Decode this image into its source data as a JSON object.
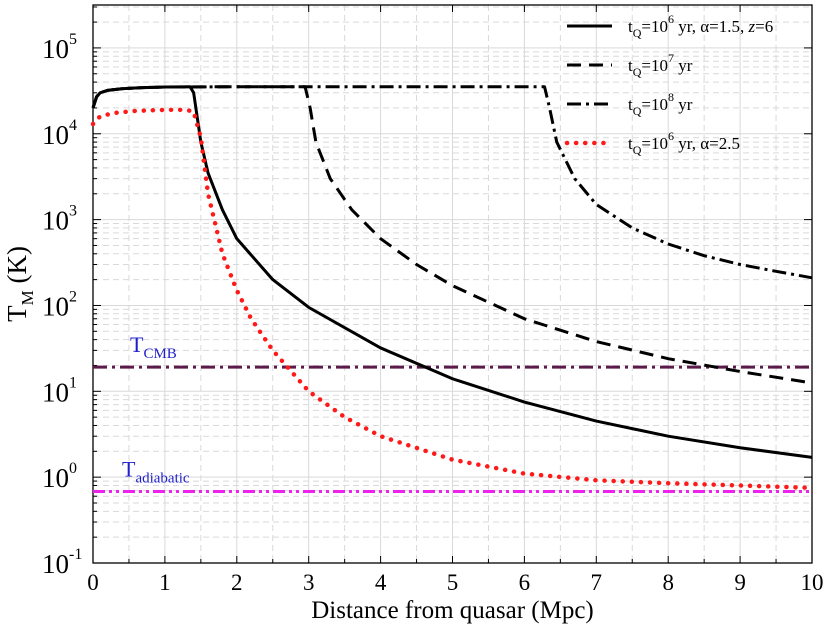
{
  "chart_data": {
    "type": "line",
    "title": "",
    "xlabel": "Distance from quasar (Mpc)",
    "ylabel": {
      "main": "T",
      "sub": "M",
      "units": "(K)"
    },
    "xlim": [
      0,
      10
    ],
    "ylim_log10": [
      -1,
      5.5
    ],
    "y_scale": "log",
    "x_ticks": [
      0,
      1,
      2,
      3,
      4,
      5,
      6,
      7,
      8,
      9,
      10
    ],
    "y_ticks": [
      {
        "base": "10",
        "exp": "-1",
        "value": 0.1
      },
      {
        "base": "10",
        "exp": "0",
        "value": 1
      },
      {
        "base": "10",
        "exp": "1",
        "value": 10
      },
      {
        "base": "10",
        "exp": "2",
        "value": 100
      },
      {
        "base": "10",
        "exp": "3",
        "value": 1000
      },
      {
        "base": "10",
        "exp": "4",
        "value": 10000
      },
      {
        "base": "10",
        "exp": "5",
        "value": 100000
      }
    ],
    "grid": true,
    "legend_position": "top-right",
    "series": [
      {
        "name": "tQ=10^6 yr, α=1.5, z=6",
        "legend": {
          "pre": "t",
          "sub": "Q",
          "mid": "=10",
          "sup": "6",
          "post": " yr, α=1.5, ",
          "ital": "z",
          "tail": "=6"
        },
        "style": "solid",
        "color": "#000000",
        "x": [
          0.0,
          0.05,
          0.1,
          0.2,
          0.4,
          0.7,
          1.0,
          1.2,
          1.35,
          1.4,
          1.5,
          1.6,
          1.8,
          2.0,
          2.5,
          3.0,
          4.0,
          5.0,
          6.0,
          7.0,
          8.0,
          9.0,
          10.0
        ],
        "y": [
          20000,
          27000,
          30000,
          32000,
          33500,
          34500,
          35000,
          35200,
          35300,
          30000,
          8000,
          3500,
          1300,
          600,
          200,
          95,
          32,
          14,
          7.5,
          4.5,
          3.0,
          2.2,
          1.7
        ]
      },
      {
        "name": "tQ=10^7 yr",
        "legend": {
          "pre": "t",
          "sub": "Q",
          "mid": "=10",
          "sup": "7",
          "post": " yr",
          "ital": "",
          "tail": ""
        },
        "style": "dashed",
        "color": "#000000",
        "x": [
          0.0,
          0.05,
          0.1,
          0.2,
          0.4,
          0.7,
          1.0,
          1.5,
          2.0,
          2.5,
          2.95,
          3.02,
          3.1,
          3.3,
          3.6,
          4.0,
          4.5,
          5.0,
          6.0,
          7.0,
          8.0,
          9.0,
          10.0
        ],
        "y": [
          20000,
          27000,
          30000,
          32000,
          33500,
          34500,
          35000,
          35200,
          35300,
          35300,
          35300,
          20000,
          8000,
          3000,
          1300,
          600,
          300,
          170,
          70,
          38,
          24,
          17,
          12.5
        ]
      },
      {
        "name": "tQ=10^8 yr",
        "legend": {
          "pre": "t",
          "sub": "Q",
          "mid": "=10",
          "sup": "8",
          "post": " yr",
          "ital": "",
          "tail": ""
        },
        "style": "dashdot",
        "color": "#000000",
        "x": [
          0.0,
          0.05,
          0.1,
          0.2,
          0.4,
          0.7,
          1.0,
          2.0,
          3.0,
          4.0,
          5.0,
          6.0,
          6.28,
          6.35,
          6.45,
          6.7,
          7.0,
          7.5,
          8.0,
          8.5,
          9.0,
          9.5,
          10.0
        ],
        "y": [
          20000,
          27000,
          30000,
          32000,
          33500,
          34500,
          35000,
          35300,
          35300,
          35300,
          35300,
          35300,
          35300,
          20000,
          8000,
          3000,
          1500,
          800,
          520,
          380,
          300,
          250,
          210
        ]
      },
      {
        "name": "tQ=10^6 yr, α=2.5",
        "legend": {
          "pre": "t",
          "sub": "Q",
          "mid": "=10",
          "sup": "6",
          "post": " yr, α=2.5",
          "ital": "",
          "tail": ""
        },
        "style": "dotted",
        "color": "#ff1a1a",
        "x": [
          0.0,
          0.1,
          0.3,
          0.6,
          1.0,
          1.3,
          1.4,
          1.5,
          1.6,
          1.8,
          2.0,
          2.2,
          2.5,
          3.0,
          3.5,
          4.0,
          5.0,
          6.0,
          7.0,
          8.0,
          9.0,
          10.0
        ],
        "y": [
          13000,
          16000,
          17500,
          18500,
          19000,
          19000,
          18000,
          9000,
          2000,
          400,
          150,
          70,
          30,
          10,
          5,
          3,
          1.6,
          1.1,
          0.92,
          0.85,
          0.8,
          0.75
        ]
      }
    ],
    "reference_lines": [
      {
        "name": "T_CMB",
        "label": {
          "main": "T",
          "sub": "CMB"
        },
        "value": 19.1,
        "color": "#5c1a4a",
        "style": "dashdot",
        "label_color": "#1f1fcc"
      },
      {
        "name": "T_adiabatic",
        "label": {
          "main": "T",
          "sub": "adiabatic"
        },
        "value": 0.68,
        "color": "#ee22ee",
        "style": "dashdotdot",
        "label_color": "#1f1fcc"
      }
    ]
  }
}
